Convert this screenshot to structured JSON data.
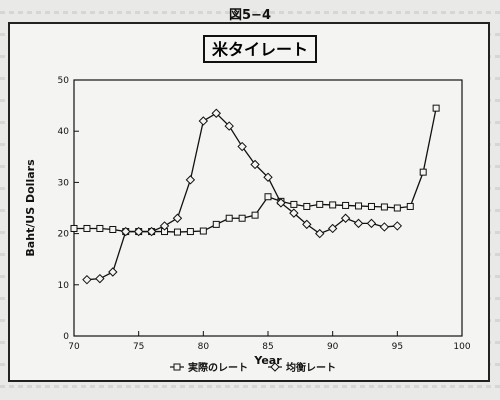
{
  "figure_label": "図5−4",
  "chart_data": {
    "type": "line",
    "title": "米タイレート",
    "xlabel": "Year",
    "ylabel": "Baht/US Dollars",
    "xlim": [
      70,
      100
    ],
    "ylim": [
      0,
      50
    ],
    "xticks": [
      70,
      75,
      80,
      85,
      90,
      95,
      100
    ],
    "yticks": [
      0,
      10,
      20,
      30,
      40,
      50
    ],
    "grid": false,
    "legend_position": "bottom",
    "series": [
      {
        "name": "実際のレート",
        "marker": "square",
        "x": [
          70,
          71,
          72,
          73,
          74,
          75,
          76,
          77,
          78,
          79,
          80,
          81,
          82,
          83,
          84,
          85,
          86,
          87,
          88,
          89,
          90,
          91,
          92,
          93,
          94,
          95,
          96,
          97,
          98
        ],
        "y": [
          21.0,
          21.0,
          21.0,
          20.8,
          20.4,
          20.4,
          20.4,
          20.4,
          20.3,
          20.4,
          20.5,
          21.8,
          23.0,
          23.0,
          23.6,
          27.2,
          26.3,
          25.7,
          25.3,
          25.7,
          25.6,
          25.5,
          25.4,
          25.3,
          25.2,
          25.0,
          25.3,
          32.0,
          44.5
        ]
      },
      {
        "name": "均衡レート",
        "marker": "diamond",
        "x": [
          71,
          72,
          73,
          74,
          75,
          76,
          77,
          78,
          79,
          80,
          81,
          82,
          83,
          84,
          85,
          86,
          87,
          88,
          89,
          90,
          91,
          92,
          93,
          94,
          95
        ],
        "y": [
          11.0,
          11.2,
          12.5,
          20.4,
          20.4,
          20.4,
          21.5,
          23.0,
          30.5,
          42.0,
          43.5,
          41.0,
          37.0,
          33.5,
          31.0,
          26.0,
          24.0,
          21.8,
          20.0,
          21.0,
          23.0,
          22.0,
          22.0,
          21.3,
          21.5
        ]
      }
    ]
  }
}
